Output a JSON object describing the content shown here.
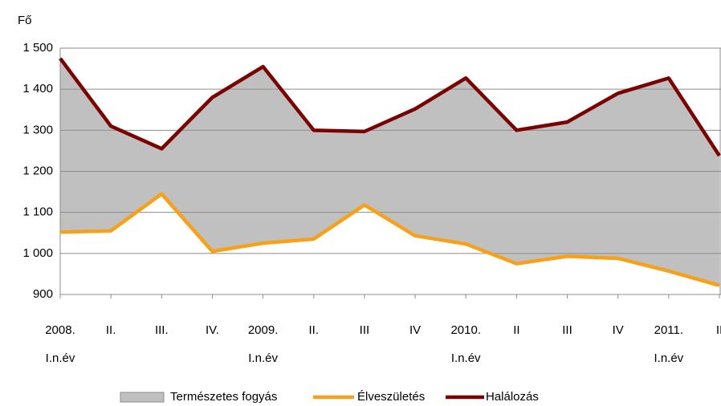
{
  "chart_data": {
    "type": "line",
    "y_axis_label": "Fő",
    "categories": [
      "2008.",
      "II.",
      "III.",
      "IV.",
      "2009.",
      "II.",
      "III",
      "IV",
      "2010.",
      "II",
      "III",
      "IV",
      "2011.",
      "II"
    ],
    "category_sublabels": [
      "I.n.év",
      null,
      null,
      null,
      "I.n.év",
      null,
      null,
      null,
      "I.n.év",
      null,
      null,
      null,
      "I.n.év",
      null
    ],
    "area": {
      "name": "Természetes fogyás",
      "color": "#c0c0c0"
    },
    "series": [
      {
        "name": "Élveszületés",
        "color": "#f7a11a",
        "values": [
          1052,
          1055,
          1145,
          1005,
          1025,
          1035,
          1118,
          1043,
          1023,
          975,
          993,
          988,
          957,
          922
        ]
      },
      {
        "name": "Halálozás",
        "color": "#7b0000",
        "values": [
          1475,
          1310,
          1255,
          1380,
          1455,
          1300,
          1297,
          1352,
          1427,
          1300,
          1320,
          1390,
          1427,
          1238
        ]
      }
    ],
    "ylim": [
      900,
      1500
    ],
    "yticks": [
      900,
      {
        "value": 1000,
        "label": "1 000"
      },
      {
        "value": 1100,
        "label": "1 100"
      },
      {
        "value": 1200,
        "label": "1 200"
      },
      {
        "value": 1300,
        "label": "1 300"
      },
      {
        "value": 1400,
        "label": "1 400"
      },
      {
        "value": 1500,
        "label": "1 500"
      }
    ],
    "grid": true
  }
}
